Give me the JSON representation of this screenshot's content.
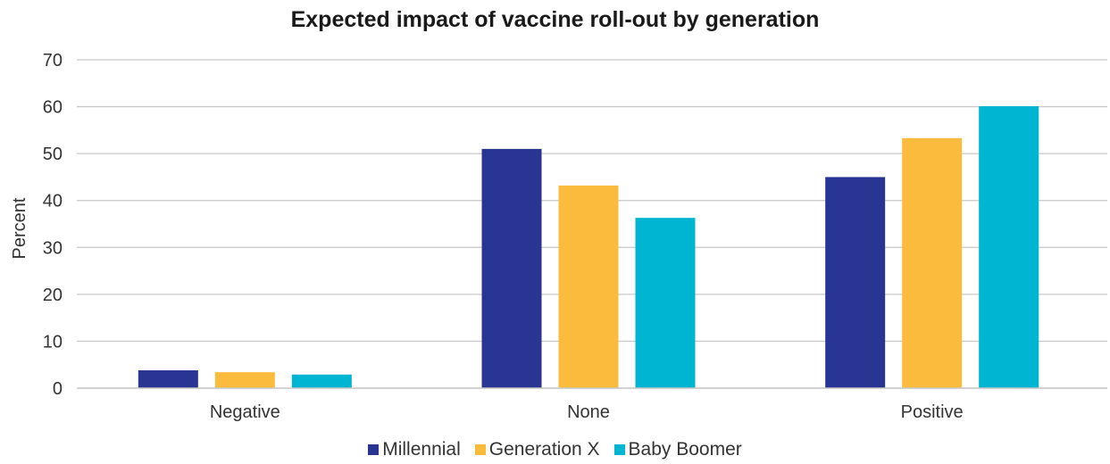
{
  "chart_data": {
    "type": "bar",
    "title": "Expected impact of vaccine roll-out by generation",
    "xlabel": "",
    "ylabel": "Percent",
    "ylim": [
      0,
      70
    ],
    "yticks": [
      0,
      10,
      20,
      30,
      40,
      50,
      60,
      70
    ],
    "categories": [
      "Negative",
      "None",
      "Positive"
    ],
    "series": [
      {
        "name": "Millennial",
        "color": "#283593",
        "values": [
          3.8,
          51,
          45
        ]
      },
      {
        "name": "Generation X",
        "color": "#FBBC3D",
        "values": [
          3.4,
          43.2,
          53.3
        ]
      },
      {
        "name": "Baby Boomer",
        "color": "#00B5D1",
        "values": [
          2.9,
          36.3,
          60.1
        ]
      }
    ],
    "grid": true,
    "legend": "bottom"
  }
}
